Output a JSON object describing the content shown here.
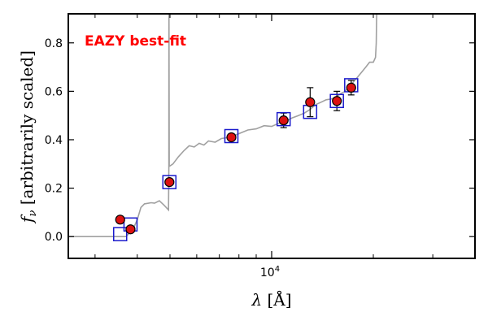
{
  "chart_data": {
    "type": "scatter",
    "xscale": "log",
    "xlim": [
      2500,
      40000
    ],
    "ylim": [
      -0.09,
      0.92
    ],
    "yticks": [
      {
        "value": 0.0,
        "label": "0.0"
      },
      {
        "value": 0.2,
        "label": "0.2"
      },
      {
        "value": 0.4,
        "label": "0.4"
      },
      {
        "value": 0.6,
        "label": "0.6"
      },
      {
        "value": 0.8,
        "label": "0.8"
      }
    ],
    "xtick_major": {
      "value": 10000,
      "base": "10",
      "exponent": "4"
    },
    "xtick_minor": [
      3000,
      4000,
      5000,
      6000,
      7000,
      8000,
      9000,
      20000,
      30000
    ],
    "xlabel_symbol": "λ",
    "xlabel_unit": "[Å]",
    "ylabel_symbol": "f",
    "ylabel_subscript": "ν",
    "ylabel_text": "[arbitrarily scaled]",
    "annotation": {
      "text": "EAZY best-fit",
      "color": "#ff0000"
    },
    "colors": {
      "template": "#a0a0a0",
      "observed": "#dd1111",
      "model": "#1a1acc"
    },
    "observed": [
      {
        "x": 3560,
        "y": 0.07,
        "err": 0.012
      },
      {
        "x": 3820,
        "y": 0.03,
        "err": 0.008
      },
      {
        "x": 4980,
        "y": 0.225,
        "err": 0.01
      },
      {
        "x": 7600,
        "y": 0.41,
        "err": 0.01
      },
      {
        "x": 10850,
        "y": 0.48,
        "err": 0.03
      },
      {
        "x": 13000,
        "y": 0.555,
        "err": 0.06
      },
      {
        "x": 15600,
        "y": 0.56,
        "err": 0.04
      },
      {
        "x": 17200,
        "y": 0.615,
        "err": 0.03
      }
    ],
    "model": [
      {
        "x": 3560,
        "y": 0.01
      },
      {
        "x": 3820,
        "y": 0.05
      },
      {
        "x": 4980,
        "y": 0.225
      },
      {
        "x": 7600,
        "y": 0.415
      },
      {
        "x": 10850,
        "y": 0.485
      },
      {
        "x": 13000,
        "y": 0.515
      },
      {
        "x": 15600,
        "y": 0.56
      },
      {
        "x": 17200,
        "y": 0.625
      }
    ],
    "template": [
      [
        2500,
        0.0
      ],
      [
        3600,
        0.0
      ],
      [
        3700,
        0.0
      ],
      [
        3800,
        0.015
      ],
      [
        3900,
        0.035
      ],
      [
        4000,
        0.07
      ],
      [
        4100,
        0.12
      ],
      [
        4200,
        0.135
      ],
      [
        4400,
        0.14
      ],
      [
        4500,
        0.138
      ],
      [
        4650,
        0.148
      ],
      [
        4800,
        0.13
      ],
      [
        4950,
        0.11
      ],
      [
        4960,
        0.28
      ],
      [
        4965,
        1.05
      ],
      [
        4975,
        0.29
      ],
      [
        5100,
        0.3
      ],
      [
        5300,
        0.33
      ],
      [
        5500,
        0.355
      ],
      [
        5700,
        0.375
      ],
      [
        5900,
        0.37
      ],
      [
        6100,
        0.385
      ],
      [
        6300,
        0.378
      ],
      [
        6500,
        0.395
      ],
      [
        6800,
        0.39
      ],
      [
        7100,
        0.405
      ],
      [
        7500,
        0.41
      ],
      [
        8000,
        0.425
      ],
      [
        8500,
        0.44
      ],
      [
        9000,
        0.445
      ],
      [
        9500,
        0.458
      ],
      [
        10000,
        0.455
      ],
      [
        10500,
        0.468
      ],
      [
        11000,
        0.475
      ],
      [
        11500,
        0.49
      ],
      [
        12000,
        0.5
      ],
      [
        12500,
        0.51
      ],
      [
        13000,
        0.525
      ],
      [
        13500,
        0.545
      ],
      [
        14000,
        0.555
      ],
      [
        14500,
        0.565
      ],
      [
        15000,
        0.568
      ],
      [
        15500,
        0.575
      ],
      [
        16000,
        0.59
      ],
      [
        16500,
        0.6
      ],
      [
        17000,
        0.62
      ],
      [
        17500,
        0.64
      ],
      [
        18000,
        0.66
      ],
      [
        18500,
        0.68
      ],
      [
        19000,
        0.7
      ],
      [
        19500,
        0.72
      ],
      [
        20000,
        0.72
      ],
      [
        20300,
        0.74
      ],
      [
        20400,
        0.8
      ],
      [
        20450,
        0.9
      ],
      [
        20500,
        0.95
      ]
    ]
  }
}
